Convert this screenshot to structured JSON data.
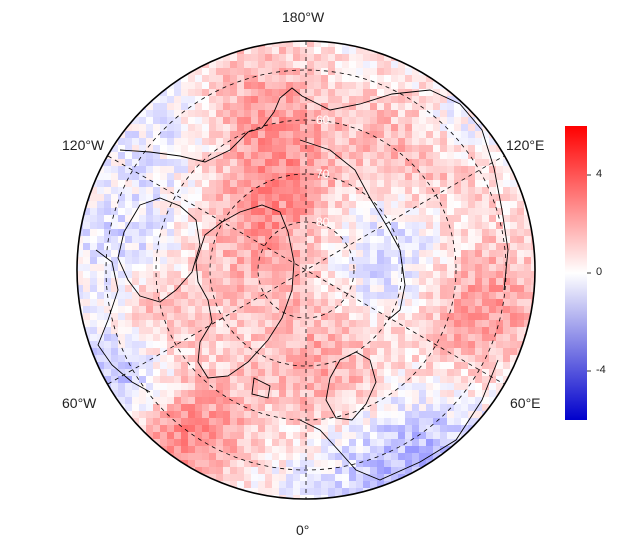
{
  "map": {
    "projection": "north-polar-stereographic",
    "longitude_labels": {
      "top": "180°W",
      "upper_left": "120°W",
      "upper_right": "120°E",
      "lower_left": "60°W",
      "lower_right": "60°E",
      "bottom": "0°"
    },
    "latitude_labels": [
      "60",
      "70",
      "80"
    ],
    "grid": "dashed",
    "coastlines": true,
    "country_borders": true
  },
  "colorbar": {
    "ticks": [
      "4",
      "0",
      "-4"
    ],
    "tick_values": [
      4,
      0,
      -4
    ],
    "range": [
      -6,
      6
    ],
    "colormap": "blue-white-red",
    "low_color": "#0000cc",
    "mid_color": "#ffffff",
    "high_color": "#ff0000"
  }
}
